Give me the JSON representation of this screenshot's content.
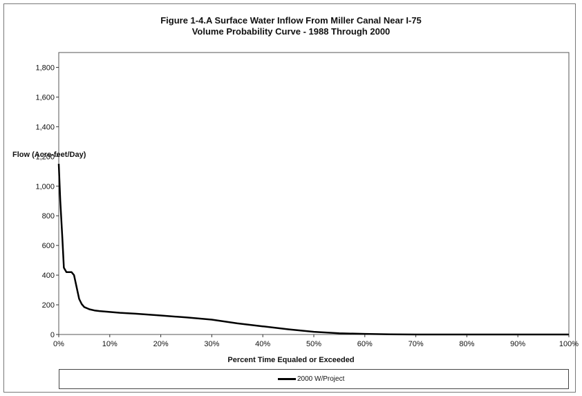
{
  "chart_data": {
    "type": "line",
    "title": "Figure 1-4.A Surface Water Inflow From Miller Canal Near I-75",
    "subtitle": "Volume Probability Curve - 1988 Through 2000",
    "xlabel": "Percent Time Equaled or Exceeded",
    "ylabel": "Flow (Acre-feet/Day)",
    "xlim": [
      0,
      100
    ],
    "ylim": [
      0,
      1900
    ],
    "x_ticks": [
      "0%",
      "10%",
      "20%",
      "30%",
      "40%",
      "50%",
      "60%",
      "70%",
      "80%",
      "90%",
      "100%"
    ],
    "y_ticks": [
      "0",
      "200",
      "400",
      "600",
      "800",
      "1,000",
      "1,200",
      "1,400",
      "1,600",
      "1,800"
    ],
    "grid": false,
    "legend_position": "bottom",
    "series": [
      {
        "name": "2000 W/Project",
        "color": "#000000",
        "x": [
          0,
          0.3,
          0.7,
          1.0,
          1.5,
          2.0,
          2.5,
          3.0,
          3.5,
          4.0,
          4.5,
          5,
          6,
          7,
          8,
          10,
          12,
          15,
          20,
          25,
          30,
          35,
          40,
          45,
          50,
          55,
          60,
          65,
          70,
          80,
          90,
          100
        ],
        "y": [
          1150,
          900,
          650,
          450,
          420,
          420,
          420,
          400,
          320,
          240,
          205,
          185,
          170,
          162,
          158,
          152,
          146,
          140,
          128,
          115,
          100,
          75,
          55,
          35,
          18,
          8,
          4,
          1,
          0,
          0,
          0,
          0
        ]
      }
    ]
  }
}
